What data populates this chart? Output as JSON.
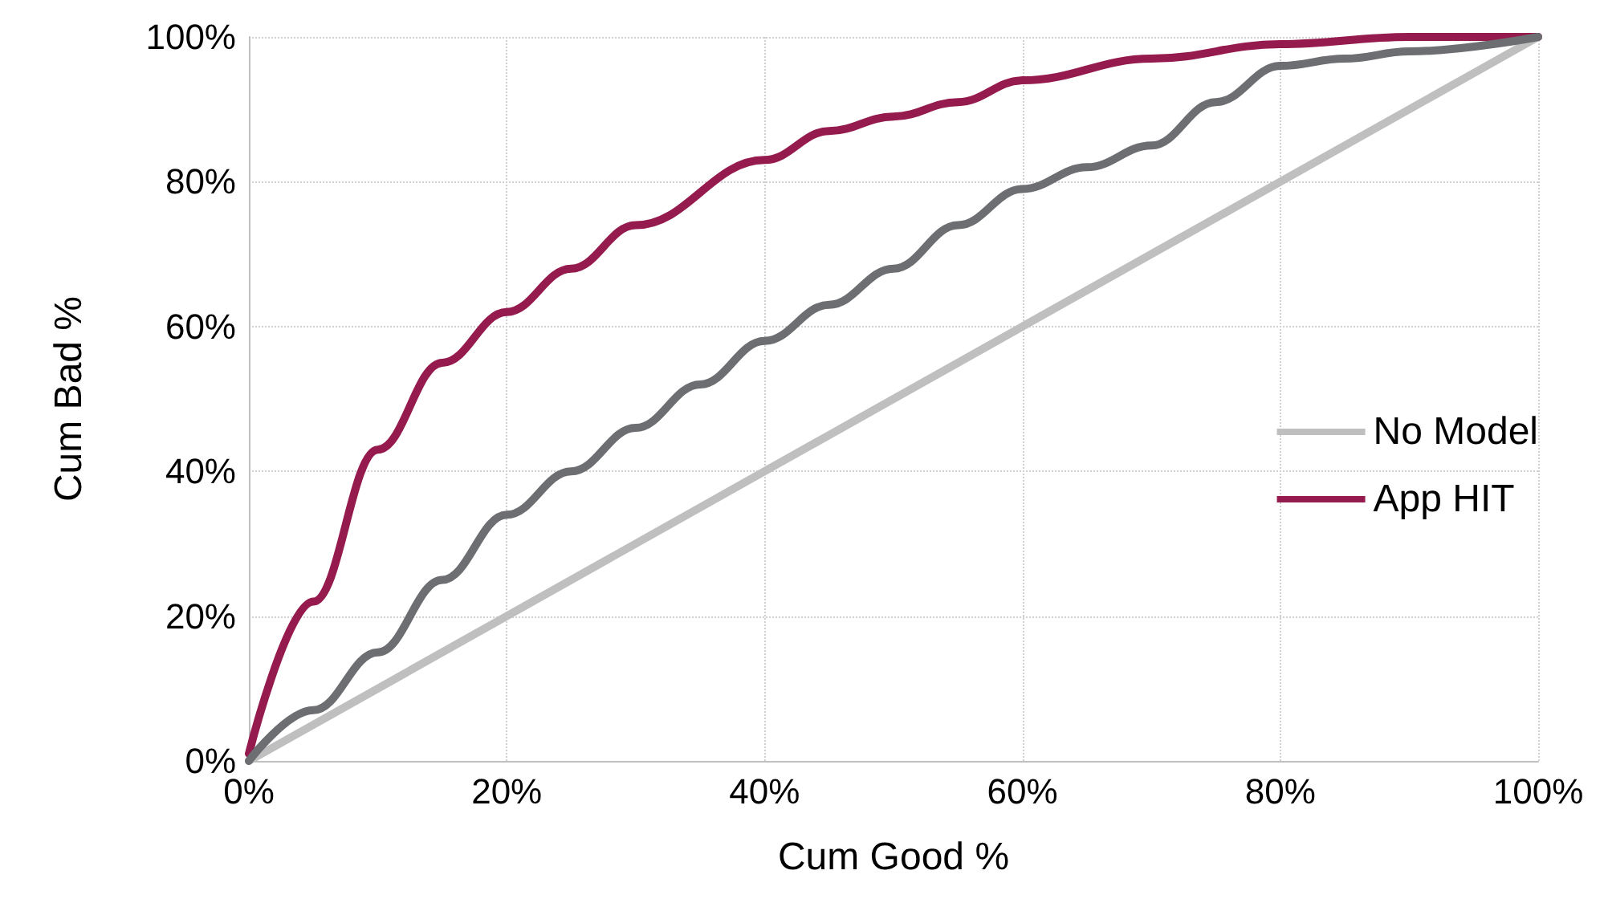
{
  "chart_data": {
    "type": "line",
    "xlabel": "Cum Good %",
    "ylabel": "Cum Bad %",
    "xlim": [
      0,
      100
    ],
    "ylim": [
      0,
      100
    ],
    "xticks": [
      {
        "value": 0,
        "label": "0%"
      },
      {
        "value": 20,
        "label": "20%"
      },
      {
        "value": 40,
        "label": "40%"
      },
      {
        "value": 60,
        "label": "60%"
      },
      {
        "value": 80,
        "label": "80%"
      },
      {
        "value": 100,
        "label": "100%"
      }
    ],
    "yticks": [
      {
        "value": 0,
        "label": "0%"
      },
      {
        "value": 20,
        "label": "20%"
      },
      {
        "value": 40,
        "label": "40%"
      },
      {
        "value": 60,
        "label": "60%"
      },
      {
        "value": 80,
        "label": "80%"
      },
      {
        "value": 100,
        "label": "100%"
      }
    ],
    "grid": true,
    "legend": "right",
    "marker": "none",
    "line_style": "solid",
    "series": [
      {
        "name": "No Model",
        "color": "#bfbfbf",
        "x": [
          0,
          100
        ],
        "values": [
          0,
          100
        ]
      },
      {
        "name": "App HIT",
        "color": "#951b4e",
        "x": [
          0,
          5,
          10,
          15,
          20,
          25,
          30,
          40,
          45,
          50,
          55,
          60,
          70,
          80,
          90,
          100
        ],
        "values": [
          1,
          22,
          43,
          55,
          62,
          68,
          74,
          83,
          87,
          89,
          91,
          94,
          97,
          99,
          100,
          100
        ]
      },
      {
        "color": "#6d6e71",
        "x": [
          0,
          5,
          10,
          15,
          20,
          25,
          30,
          35,
          40,
          45,
          50,
          55,
          60,
          65,
          70,
          75,
          80,
          85,
          90,
          100
        ],
        "values": [
          0,
          7,
          15,
          25,
          34,
          40,
          46,
          52,
          58,
          63,
          68,
          74,
          79,
          82,
          85,
          91,
          96,
          97,
          98,
          100
        ]
      }
    ]
  }
}
